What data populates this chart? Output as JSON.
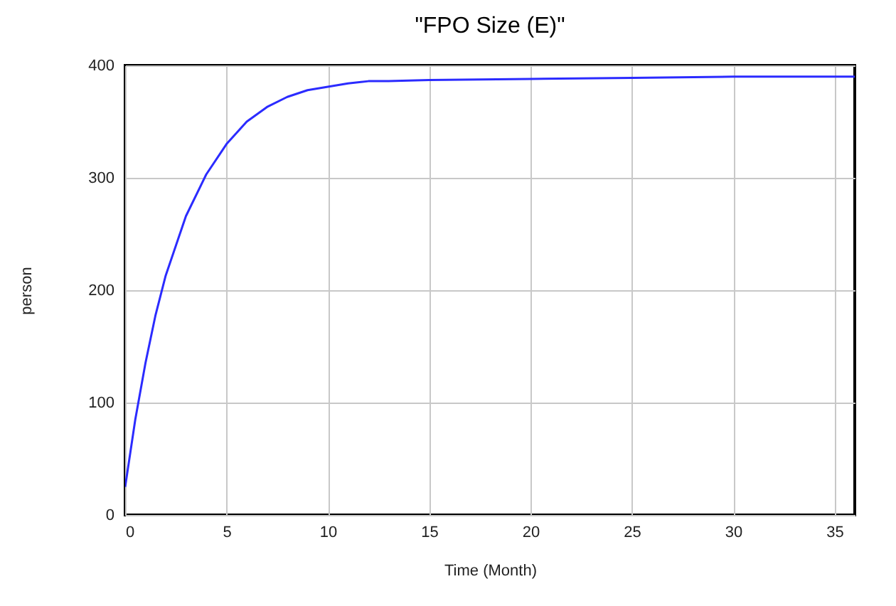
{
  "chart_data": {
    "type": "line",
    "title": "\"FPO Size (E)\"",
    "xlabel": "Time (Month)",
    "ylabel": "person",
    "x": [
      0,
      0.5,
      1,
      1.5,
      2,
      3,
      4,
      5,
      6,
      7,
      8,
      9,
      10,
      11,
      12,
      13,
      15,
      20,
      25,
      30,
      36
    ],
    "series": [
      {
        "color": "#2b2bff",
        "values": [
          25,
          85,
          135,
          178,
          213,
          266,
          303,
          330,
          350,
          363,
          372,
          378,
          381,
          384,
          386,
          386,
          387,
          388,
          389,
          390,
          390
        ]
      }
    ],
    "xlim": [
      0,
      36
    ],
    "xticks": [
      0,
      5,
      10,
      15,
      20,
      25,
      30,
      35
    ],
    "ylim": [
      0,
      400
    ],
    "yticks": [
      0,
      100,
      200,
      300,
      400
    ],
    "grid": true
  }
}
